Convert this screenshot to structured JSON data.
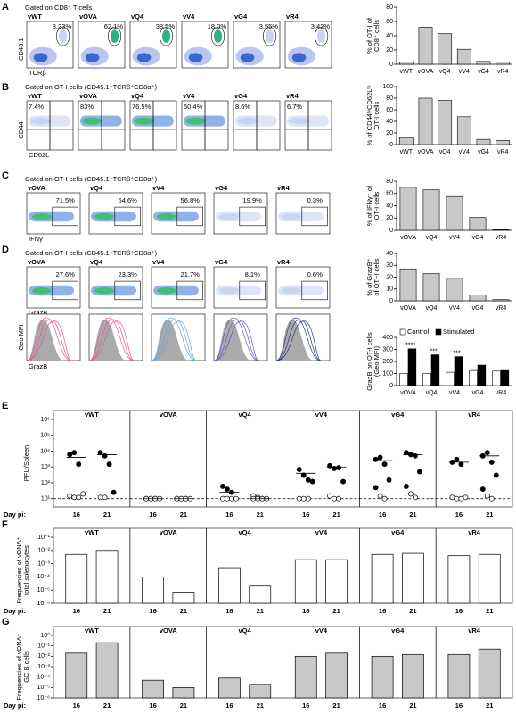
{
  "letters": [
    "A",
    "B",
    "C",
    "D",
    "E",
    "F",
    "G"
  ],
  "flow": [
    {
      "gate": "Gated on CD8⁺ T cells",
      "samples": [
        "vWT",
        "vOVA",
        "vQ4",
        "vV4",
        "vG4",
        "vR4"
      ],
      "percents": [
        "3.23%",
        "62.1%",
        "38.5%",
        "18.0%",
        "3.55%",
        "3.42%"
      ],
      "y_axis": "CD45.1",
      "x_axis": "TCRβ"
    },
    {
      "gate": "Gated on OT-I cells (CD45.1⁺TCRβ⁺CD8α⁺)",
      "samples": [
        "vWT",
        "vOVA",
        "vQ4",
        "vV4",
        "vG4",
        "vR4"
      ],
      "percents": [
        "7.4%",
        "83%",
        "76.5%",
        "50.4%",
        "8.6%",
        "6.7%"
      ],
      "y_axis": "CD44",
      "x_axis": "CD62L"
    },
    {
      "gate": "Gated on OT-I cells (CD45.1⁺TCRβ⁺CD8α⁺)",
      "samples": [
        "vOVA",
        "vQ4",
        "vV4",
        "vG4",
        "vR4"
      ],
      "percents": [
        "71.5%",
        "64.6%",
        "56.8%",
        "19.9%",
        "0.3%"
      ],
      "x_axis": "IFNγ"
    },
    {
      "gate": "Gated on OT-I cells (CD45.1⁺TCRβ⁺CD8α⁺)",
      "samples": [
        "vOVA",
        "vQ4",
        "vV4",
        "vG4",
        "vR4"
      ],
      "percents": [
        "27.6%",
        "23.3%",
        "21.7%",
        "8.1%",
        "0.6%"
      ],
      "x_axis": "GrazB"
    }
  ],
  "histogram": {
    "y_axis": "Geo MFI",
    "x_axis": "GrazB"
  },
  "chart_data": [
    {
      "type": "bar",
      "y_label": [
        "% of OT-I of",
        "CD8⁺ cells"
      ],
      "categories": [
        "vWT",
        "vOVA",
        "vQ4",
        "vV4",
        "vG4",
        "vR4"
      ],
      "values": [
        3,
        52,
        43,
        21,
        4,
        3
      ],
      "color": "#c8c8c8",
      "ylim": [
        0,
        80
      ],
      "yticks": [
        0,
        20,
        40,
        60,
        80
      ]
    },
    {
      "type": "bar",
      "y_label": [
        "% of CD44ʰⁱCD62Lˡᵒ",
        "OT-I cells"
      ],
      "categories": [
        "vWT",
        "vOVA",
        "vQ4",
        "vV4",
        "vG4",
        "vR4"
      ],
      "values": [
        12,
        80,
        76,
        48,
        9,
        7
      ],
      "color": "#c8c8c8",
      "ylim": [
        0,
        100
      ],
      "yticks": [
        0,
        20,
        40,
        60,
        80,
        100
      ]
    },
    {
      "type": "bar",
      "y_label": [
        "% of IFNγ⁺ of",
        "OT-I cells"
      ],
      "categories": [
        "vOVA",
        "vQ4",
        "vV4",
        "vG4",
        "vR4"
      ],
      "values": [
        70,
        66,
        55,
        21,
        1
      ],
      "color": "#c8c8c8",
      "ylim": [
        0,
        80
      ],
      "yticks": [
        0,
        20,
        40,
        60,
        80
      ]
    },
    {
      "type": "bar",
      "y_label": [
        "% of GrazB⁺",
        "of OT−I cells"
      ],
      "categories": [
        "vOVA",
        "vQ4",
        "vV4",
        "vG4",
        "vR4"
      ],
      "values": [
        27,
        23,
        19,
        5,
        1
      ],
      "color": "#c8c8c8",
      "ylim": [
        0,
        40
      ],
      "yticks": [
        0,
        10,
        20,
        30,
        40
      ]
    },
    {
      "type": "grouped-bar",
      "y_label": [
        "GrazB on OT-I cells",
        "(Geo MFI)"
      ],
      "categories": [
        "vOVA",
        "vQ4",
        "vV4",
        "vG4",
        "vR4"
      ],
      "series": [
        {
          "name": "Control",
          "color": "#ffffff",
          "values": [
            100,
            100,
            110,
            125,
            120
          ]
        },
        {
          "name": "Stimulated",
          "color": "#000000",
          "values": [
            305,
            255,
            240,
            170,
            125
          ]
        }
      ],
      "annotations": [
        "****",
        "***",
        "***",
        null,
        null
      ],
      "ylim": [
        0,
        400
      ],
      "yticks": [
        0,
        100,
        200,
        300,
        400
      ]
    },
    {
      "type": "strip",
      "y_label": [
        "PFU/Spleen"
      ],
      "day_label": "Day pi:",
      "ylim": [
        3,
        1000000
      ],
      "log": true,
      "hline": 10,
      "yticks": [
        {
          "value": 10,
          "label": "10¹"
        },
        {
          "value": 100,
          "label": "10²"
        },
        {
          "value": 1000,
          "label": "10³"
        },
        {
          "value": 10000,
          "label": "10⁴"
        },
        {
          "value": 100000,
          "label": "10⁵"
        },
        {
          "value": 1000000,
          "label": "10⁶"
        }
      ],
      "panels": [
        {
          "title": "vWT",
          "categories": [
            "16",
            "21"
          ],
          "points": [
            [
              6000,
              8000,
              1500,
              20,
              15,
              12,
              12
            ],
            [
              8000,
              5000,
              1500,
              25,
              12,
              12
            ]
          ],
          "medians": [
            4000,
            6000
          ]
        },
        {
          "title": "vOVA",
          "categories": [
            "16",
            "21"
          ],
          "points": [
            [
              10,
              10,
              10,
              10,
              10,
              10,
              10
            ],
            [
              10,
              10,
              10,
              10,
              10,
              10,
              10
            ]
          ],
          "medians": [
            10,
            10
          ]
        },
        {
          "title": "vQ4",
          "categories": [
            "16",
            "21"
          ],
          "points": [
            [
              60,
              40,
              25,
              10,
              10,
              10,
              10
            ],
            [
              15,
              12,
              10,
              10,
              10,
              10,
              10
            ]
          ],
          "medians": [
            25,
            10
          ]
        },
        {
          "title": "vV4",
          "categories": [
            "16",
            "21"
          ],
          "points": [
            [
              700,
              300,
              150,
              120,
              10,
              10,
              10
            ],
            [
              1200,
              800,
              900,
              120,
              15,
              10,
              10
            ]
          ],
          "medians": [
            400,
            1000
          ]
        },
        {
          "title": "vG4",
          "categories": [
            "16",
            "21"
          ],
          "points": [
            [
              3000,
              4000,
              1500,
              150,
              50,
              15,
              10
            ],
            [
              8000,
              6000,
              5000,
              500,
              60,
              20,
              12
            ]
          ],
          "medians": [
            2500,
            6000
          ]
        },
        {
          "title": "vR4",
          "categories": [
            "16",
            "21"
          ],
          "points": [
            [
              2000,
              3000,
              1500,
              12,
              12,
              10,
              10
            ],
            [
              5000,
              8000,
              2000,
              300,
              40,
              15,
              10
            ]
          ],
          "medians": [
            2000,
            5000
          ]
        }
      ]
    },
    {
      "type": "log-bar",
      "y_label": [
        "Frequencies of vDNA⁺",
        "total splenocytes"
      ],
      "day_label": "Day pi:",
      "color": "#ffffff",
      "ylim": [
        1e-06,
        0.1
      ],
      "log": true,
      "yticks": [
        {
          "value": 1e-06,
          "label": "10⁻⁶"
        },
        {
          "value": 1e-05,
          "label": "10⁻⁵"
        },
        {
          "value": 0.0001,
          "label": "10⁻⁴"
        },
        {
          "value": 0.001,
          "label": "10⁻³"
        },
        {
          "value": 0.01,
          "label": "10⁻²"
        },
        {
          "value": 0.1,
          "label": "10⁻¹"
        }
      ],
      "panels": [
        {
          "title": "vWT",
          "categories": [
            "16",
            "21"
          ],
          "values": [
            0.005,
            0.01
          ]
        },
        {
          "title": "vOVA",
          "categories": [
            "16",
            "21"
          ],
          "values": [
            0.0001,
            7e-06
          ]
        },
        {
          "title": "vQ4",
          "categories": [
            "16",
            "21"
          ],
          "values": [
            0.0005,
            2e-05
          ]
        },
        {
          "title": "vV4",
          "categories": [
            "16",
            "21"
          ],
          "values": [
            0.002,
            0.002
          ]
        },
        {
          "title": "vG4",
          "categories": [
            "16",
            "21"
          ],
          "values": [
            0.005,
            0.006
          ]
        },
        {
          "title": "vR4",
          "categories": [
            "16",
            "21"
          ],
          "values": [
            0.004,
            0.005
          ]
        }
      ]
    },
    {
      "type": "log-bar",
      "y_label": [
        "Frequencies of vDNA⁺",
        "GC B cells"
      ],
      "day_label": "Day pi:",
      "color": "#c8c8c8",
      "ylim": [
        1e-06,
        1
      ],
      "log": true,
      "yticks": [
        {
          "value": 1e-06,
          "label": "10⁻⁶"
        },
        {
          "value": 1e-05,
          "label": "10⁻⁵"
        },
        {
          "value": 0.0001,
          "label": "10⁻⁴"
        },
        {
          "value": 0.001,
          "label": "10⁻³"
        },
        {
          "value": 0.01,
          "label": "10⁻²"
        },
        {
          "value": 0.1,
          "label": "10⁻¹"
        },
        {
          "value": 1,
          "label": "10⁰"
        }
      ],
      "panels": [
        {
          "title": "vWT",
          "categories": [
            "16",
            "21"
          ],
          "values": [
            0.02,
            0.2
          ]
        },
        {
          "title": "vOVA",
          "categories": [
            "16",
            "21"
          ],
          "values": [
            5e-05,
            1e-05
          ]
        },
        {
          "title": "vQ4",
          "categories": [
            "16",
            "21"
          ],
          "values": [
            8e-05,
            2e-05
          ]
        },
        {
          "title": "vV4",
          "categories": [
            "16",
            "21"
          ],
          "values": [
            0.01,
            0.02
          ]
        },
        {
          "title": "vG4",
          "categories": [
            "16",
            "21"
          ],
          "values": [
            0.01,
            0.015
          ]
        },
        {
          "title": "vR4",
          "categories": [
            "16",
            "21"
          ],
          "values": [
            0.015,
            0.05
          ]
        }
      ]
    }
  ]
}
